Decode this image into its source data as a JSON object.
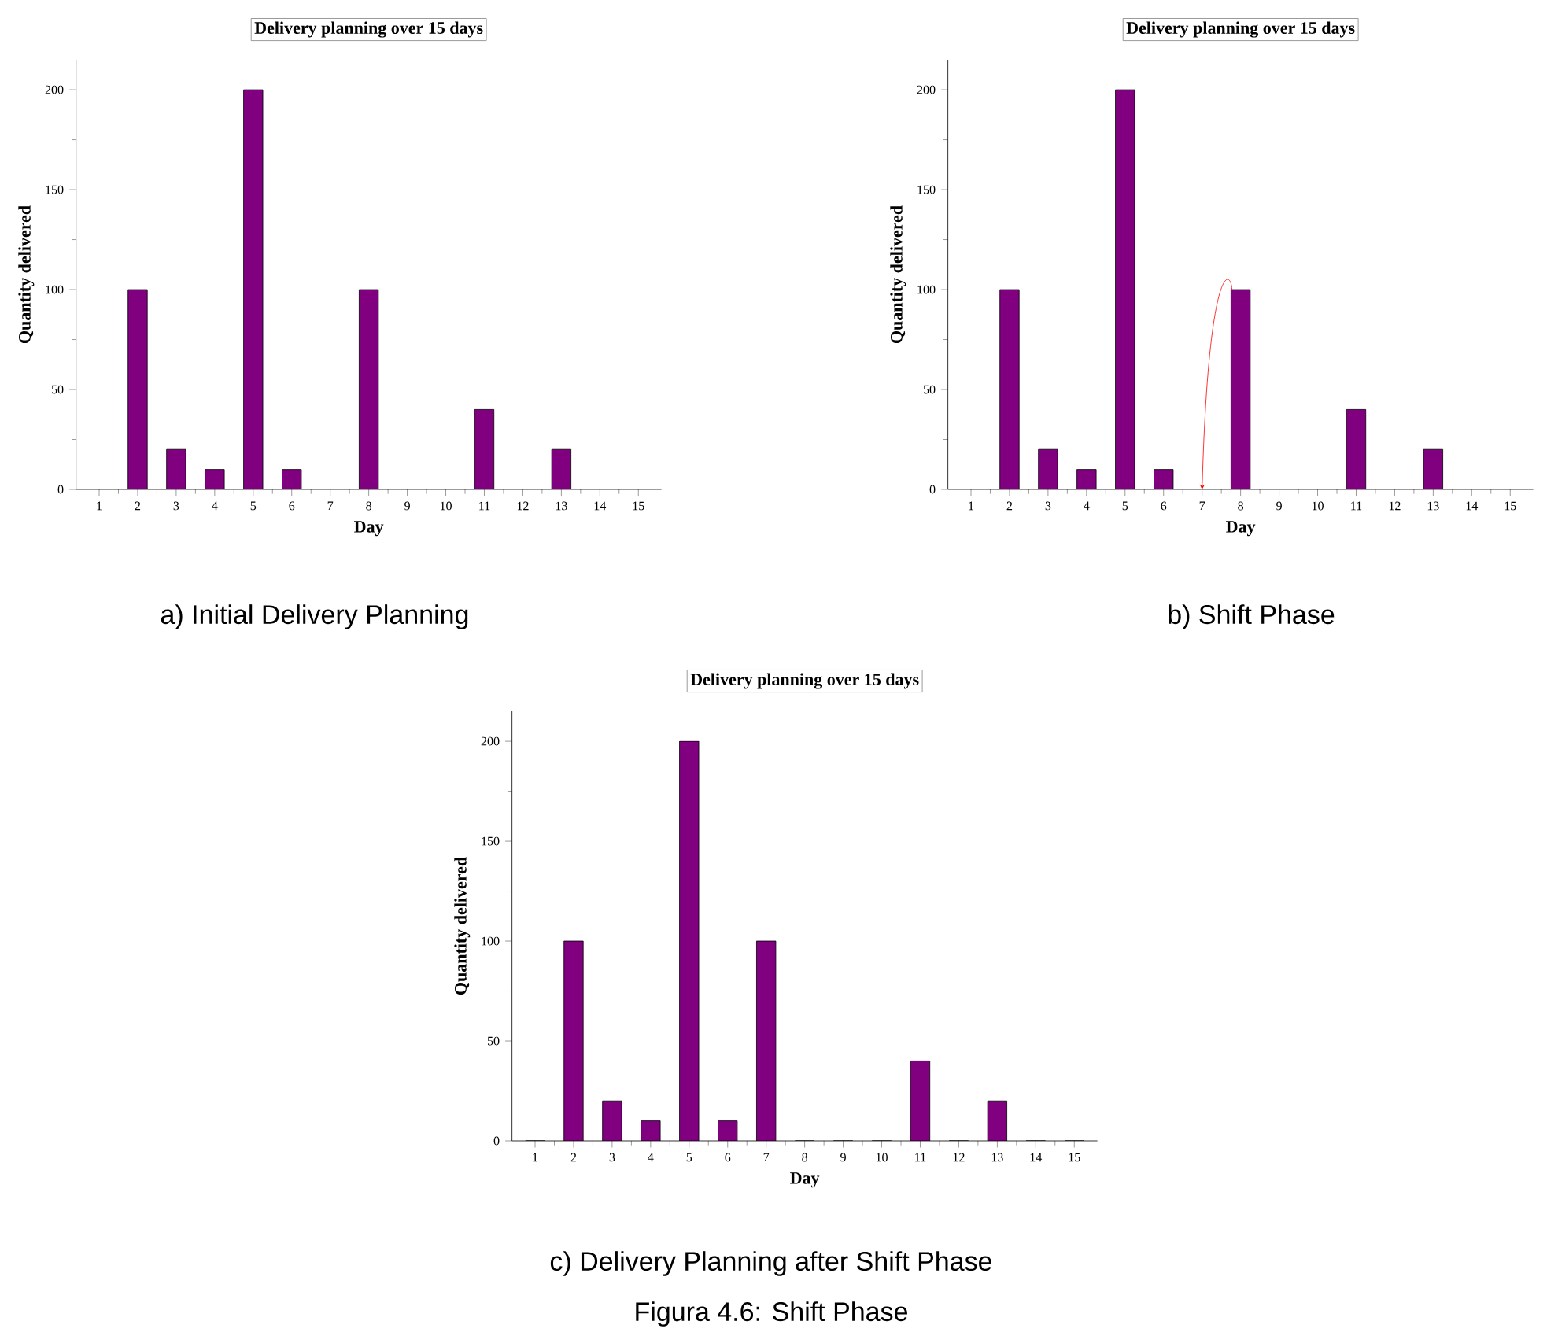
{
  "chart_data": [
    {
      "type": "bar",
      "title": "Delivery planning over 15 days",
      "xlabel": "Day",
      "ylabel": "Quantity delivered",
      "categories": [
        "1",
        "2",
        "3",
        "4",
        "5",
        "6",
        "7",
        "8",
        "9",
        "10",
        "11",
        "12",
        "13",
        "14",
        "15"
      ],
      "values": [
        0,
        100,
        20,
        10,
        200,
        10,
        0,
        100,
        0,
        0,
        40,
        0,
        20,
        0,
        0
      ],
      "color": "#800080",
      "ylim": [
        0,
        215
      ],
      "yticks": [
        0,
        50,
        100,
        150,
        200
      ],
      "grid": false,
      "annotations": [
        "a) Initial Delivery Planning"
      ]
    },
    {
      "type": "bar",
      "title": "Delivery planning over 15 days",
      "xlabel": "Day",
      "ylabel": "Quantity delivered",
      "categories": [
        "1",
        "2",
        "3",
        "4",
        "5",
        "6",
        "7",
        "8",
        "9",
        "10",
        "11",
        "12",
        "13",
        "14",
        "15"
      ],
      "values": [
        0,
        100,
        20,
        10,
        200,
        10,
        0,
        100,
        0,
        0,
        40,
        0,
        20,
        0,
        0
      ],
      "color": "#800080",
      "ylim": [
        0,
        215
      ],
      "yticks": [
        0,
        50,
        100,
        150,
        200
      ],
      "grid": false,
      "annotations": [
        "b) Shift Phase"
      ]
    },
    {
      "type": "bar",
      "title": "Delivery planning over 15 days",
      "xlabel": "Day",
      "ylabel": "Quantity delivered",
      "categories": [
        "1",
        "2",
        "3",
        "4",
        "5",
        "6",
        "7",
        "8",
        "9",
        "10",
        "11",
        "12",
        "13",
        "14",
        "15"
      ],
      "values": [
        0,
        100,
        20,
        10,
        200,
        10,
        100,
        0,
        0,
        0,
        40,
        0,
        20,
        0,
        0
      ],
      "color": "#800080",
      "ylim": [
        0,
        215
      ],
      "yticks": [
        0,
        50,
        100,
        150,
        200
      ],
      "grid": false,
      "annotations": [
        "c) Delivery Planning after Shift Phase",
        "Figura 4.6: Shift Phase"
      ]
    }
  ]
}
